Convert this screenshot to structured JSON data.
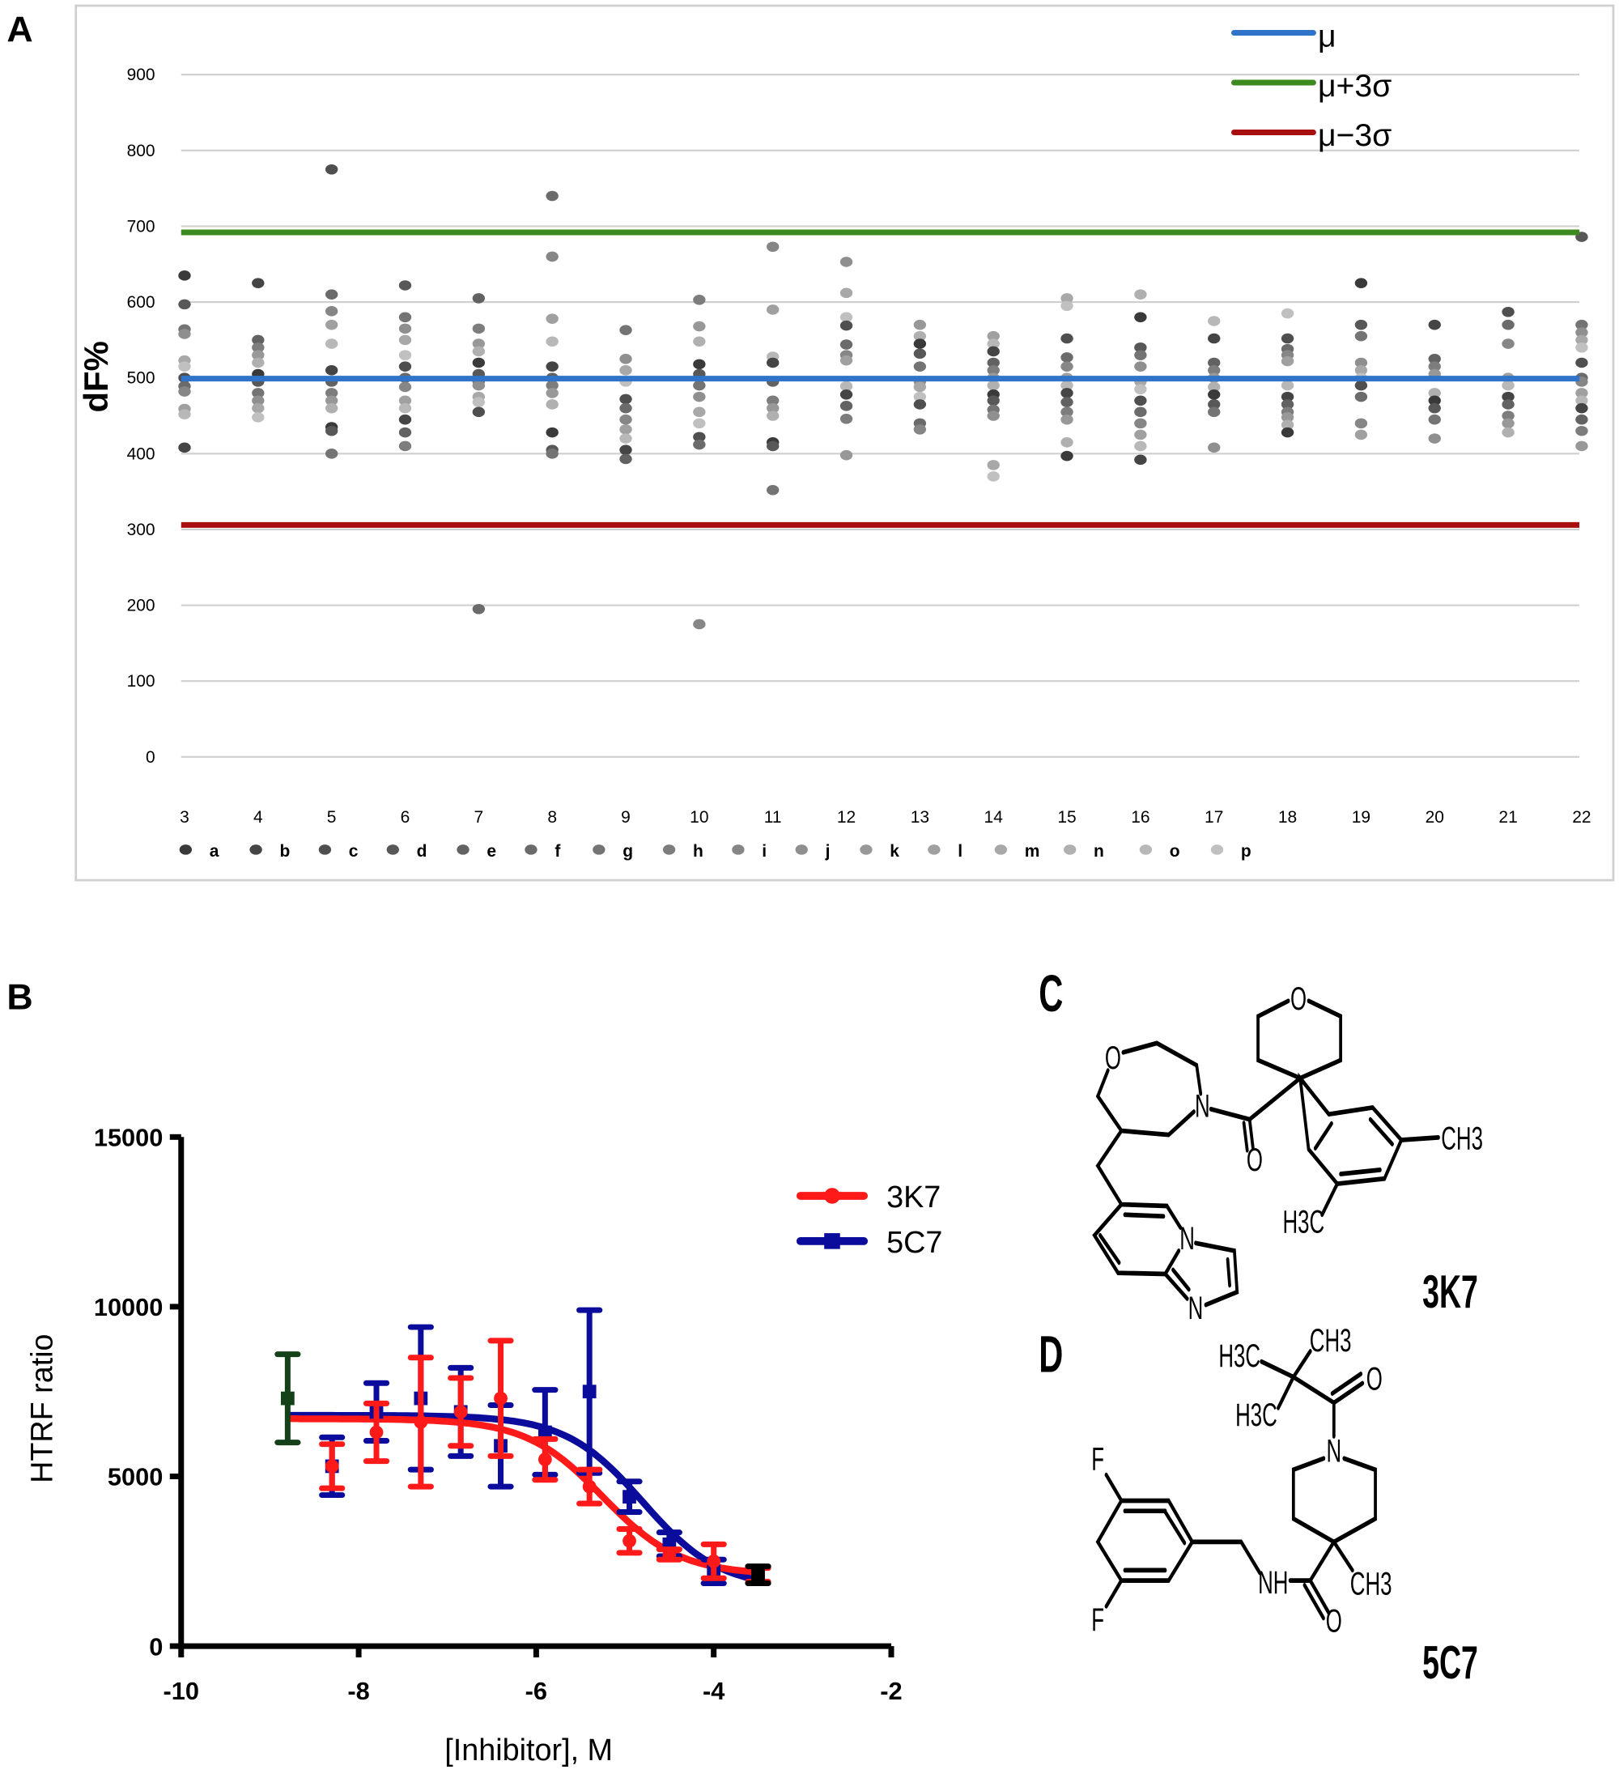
{
  "panel_labels": {
    "a": "A",
    "b": "B",
    "c": "C",
    "d": "D"
  },
  "chart_data": [
    {
      "type": "scatter",
      "ylabel": "dF%",
      "xlabel": "",
      "ylim": [
        0,
        900
      ],
      "yticks": [
        "0",
        "100",
        "200",
        "300",
        "400",
        "500",
        "600",
        "700",
        "800",
        "900"
      ],
      "categories": [
        "3",
        "4",
        "5",
        "6",
        "7",
        "8",
        "9",
        "10",
        "11",
        "12",
        "13",
        "14",
        "15",
        "16",
        "17",
        "18",
        "19",
        "20",
        "21",
        "22"
      ],
      "grid": true,
      "legend_placement": "top-right",
      "reference_lines": [
        {
          "name": "μ",
          "value": 499,
          "color": "#2f74c8"
        },
        {
          "name": "μ+3σ",
          "value": 692,
          "color": "#3c8a1e"
        },
        {
          "name": "μ−3σ",
          "value": 306,
          "color": "#a80f0f"
        }
      ],
      "series_legend": [
        "a",
        "b",
        "c",
        "d",
        "e",
        "f",
        "g",
        "h",
        "i",
        "j",
        "k",
        "l",
        "m",
        "n",
        "o",
        "p"
      ],
      "series_colors": [
        "#3a3a3a",
        "#454545",
        "#4f4f4f",
        "#585858",
        "#626262",
        "#6b6b6b",
        "#747474",
        "#7d7d7d",
        "#868686",
        "#8f8f8f",
        "#989898",
        "#a0a0a0",
        "#a8a8a8",
        "#b0b0b0",
        "#b8b8b8",
        "#c0c0c0"
      ],
      "columns": [
        [
          635,
          597,
          564,
          558,
          523,
          515,
          500,
          489,
          482,
          459,
          452,
          408
        ],
        [
          625,
          550,
          540,
          530,
          520,
          505,
          495,
          480,
          470,
          460,
          448
        ],
        [
          775,
          610,
          588,
          570,
          545,
          510,
          495,
          480,
          470,
          460,
          435,
          430,
          400
        ],
        [
          622,
          580,
          565,
          550,
          530,
          515,
          500,
          488,
          470,
          460,
          445,
          428,
          410
        ],
        [
          605,
          565,
          545,
          535,
          520,
          505,
          495,
          490,
          475,
          468,
          455,
          195
        ],
        [
          740,
          660,
          578,
          548,
          515,
          500,
          490,
          480,
          465,
          428,
          405,
          400
        ],
        [
          563,
          525,
          510,
          495,
          472,
          460,
          445,
          432,
          420,
          405,
          393
        ],
        [
          603,
          568,
          548,
          518,
          505,
          490,
          475,
          455,
          440,
          422,
          412,
          175
        ],
        [
          673,
          590,
          528,
          520,
          495,
          470,
          460,
          450,
          415,
          410,
          352
        ],
        [
          653,
          612,
          580,
          569,
          544,
          530,
          523,
          489,
          478,
          463,
          446,
          398
        ],
        [
          570,
          555,
          545,
          532,
          515,
          495,
          488,
          475,
          465,
          440,
          432
        ],
        [
          555,
          545,
          535,
          520,
          510,
          500,
          490,
          478,
          470,
          458,
          450,
          385,
          370
        ],
        [
          605,
          595,
          552,
          527,
          515,
          500,
          490,
          480,
          468,
          455,
          445,
          415,
          397
        ],
        [
          610,
          580,
          540,
          530,
          515,
          495,
          485,
          470,
          455,
          440,
          425,
          410,
          392
        ],
        [
          575,
          552,
          520,
          510,
          500,
          488,
          478,
          465,
          455,
          408
        ],
        [
          585,
          552,
          538,
          530,
          522,
          490,
          475,
          465,
          455,
          448,
          438,
          428
        ],
        [
          625,
          570,
          555,
          520,
          510,
          500,
          490,
          475,
          440,
          425
        ],
        [
          570,
          525,
          515,
          505,
          480,
          470,
          460,
          445,
          420
        ],
        [
          587,
          570,
          545,
          500,
          490,
          475,
          465,
          450,
          440,
          428
        ],
        [
          686,
          570,
          560,
          550,
          540,
          520,
          500,
          495,
          480,
          470,
          460,
          445,
          430,
          410
        ]
      ]
    },
    {
      "type": "line",
      "xlabel": "[Inhibitor], M",
      "ylabel": "HTRF ratio",
      "xlim": [
        -10,
        -2
      ],
      "ylim": [
        0,
        15000
      ],
      "xticks": [
        "-10",
        "-8",
        "-6",
        "-4",
        "-2"
      ],
      "yticks": [
        "0",
        "5000",
        "10000",
        "15000"
      ],
      "legend_placement": "right",
      "series": [
        {
          "name": "3K7",
          "color": "#ff1a1a",
          "marker": "circle",
          "x": [
            -8.3,
            -7.8,
            -7.3,
            -6.85,
            -6.4,
            -5.9,
            -5.4,
            -4.95,
            -4.5,
            -4.0,
            -3.5
          ],
          "y": [
            5300,
            6300,
            6600,
            6900,
            7300,
            5500,
            4700,
            3100,
            2700,
            2500,
            2100
          ],
          "err": [
            650,
            850,
            1900,
            1000,
            1700,
            600,
            500,
            350,
            150,
            500,
            200
          ]
        },
        {
          "name": "5C7",
          "color": "#0c0c9c",
          "marker": "square",
          "x": [
            -8.3,
            -7.8,
            -7.3,
            -6.85,
            -6.4,
            -5.9,
            -5.4,
            -4.95,
            -4.5,
            -4.0
          ],
          "y": [
            5300,
            6900,
            7300,
            6900,
            5900,
            6300,
            7500,
            4400,
            3000,
            2200
          ],
          "err": [
            850,
            850,
            2100,
            1300,
            1200,
            1250,
            2400,
            450,
            350,
            350
          ]
        }
      ],
      "control_points": [
        {
          "x": -8.8,
          "y": 7300,
          "err": 1300,
          "color": "#14401a"
        },
        {
          "x": -3.5,
          "y": 2100,
          "err": 250,
          "color": "#000000"
        }
      ]
    }
  ],
  "structures": {
    "c": {
      "name": "3K7",
      "atoms": [
        "O",
        "N",
        "O",
        "O",
        "CH3",
        "H3C",
        "N",
        "N"
      ]
    },
    "d": {
      "name": "5C7",
      "atoms": [
        "H3C",
        "CH3",
        "O",
        "H3C",
        "N",
        "F",
        "F",
        "NH",
        "CH3",
        "O"
      ]
    }
  }
}
